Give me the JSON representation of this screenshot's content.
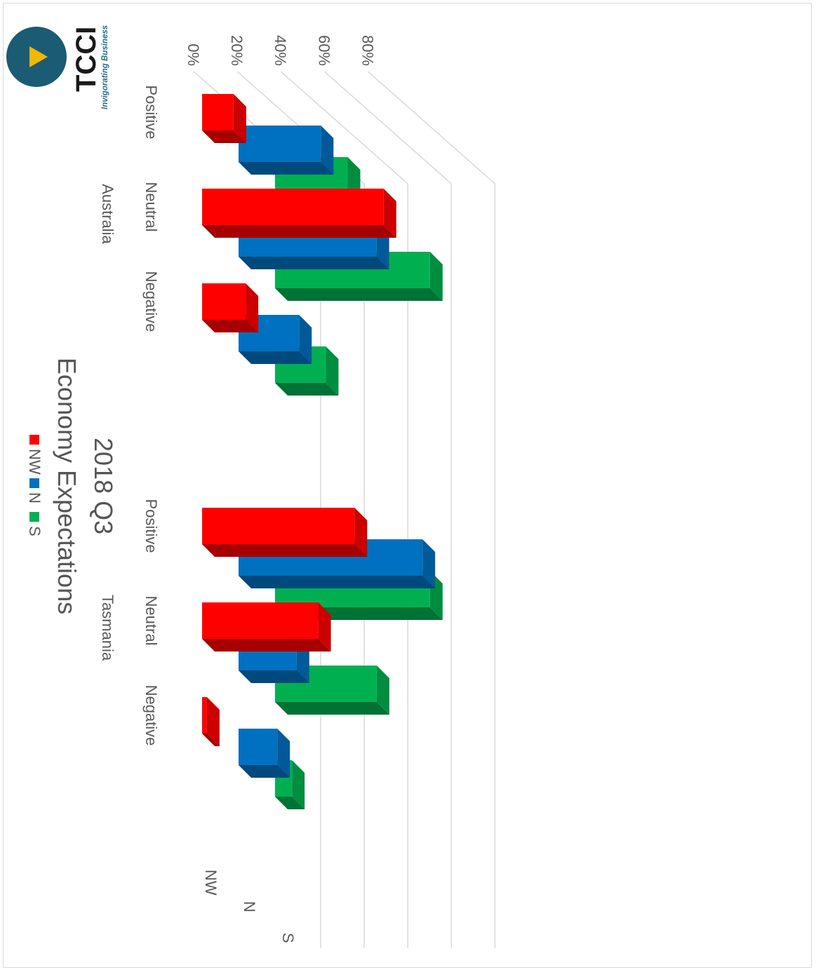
{
  "logo": {
    "name": "TCCI",
    "tagline": "Invigorating Business",
    "circle_color": "#1c5b74",
    "play_color": "#f2b705",
    "text_color": "#1a1a1a",
    "tagline_color": "#1f6f8b"
  },
  "chart_data": {
    "type": "bar",
    "title": "Economy Expectations",
    "subtitle": "2018 Q3",
    "groups": [
      "Australia",
      "Tasmania"
    ],
    "categories": [
      "Positive",
      "Neutral",
      "Negative"
    ],
    "series": [
      {
        "name": "NW",
        "color": "#ff0000",
        "values": {
          "Australia": [
            13,
            75,
            18
          ],
          "Tasmania": [
            63,
            48,
            2
          ]
        }
      },
      {
        "name": "N",
        "color": "#0070c0",
        "values": {
          "Australia": [
            34,
            57,
            25
          ],
          "Tasmania": [
            76,
            24,
            16
          ]
        }
      },
      {
        "name": "S",
        "color": "#00b050",
        "values": {
          "Australia": [
            30,
            64,
            21
          ],
          "Tasmania": [
            64,
            42,
            7
          ]
        }
      }
    ],
    "y_axis": {
      "ticks": [
        "0%",
        "20%",
        "40%",
        "60%",
        "80%"
      ],
      "range": [
        0,
        80
      ]
    },
    "depth_axis_labels": [
      "NW",
      "N",
      "S"
    ],
    "legend": {
      "position": "bottom",
      "entries": [
        "NW",
        "N",
        "S"
      ]
    },
    "grid": true,
    "chart_style": "3d-column",
    "orientation": "rotated-90-cw"
  }
}
